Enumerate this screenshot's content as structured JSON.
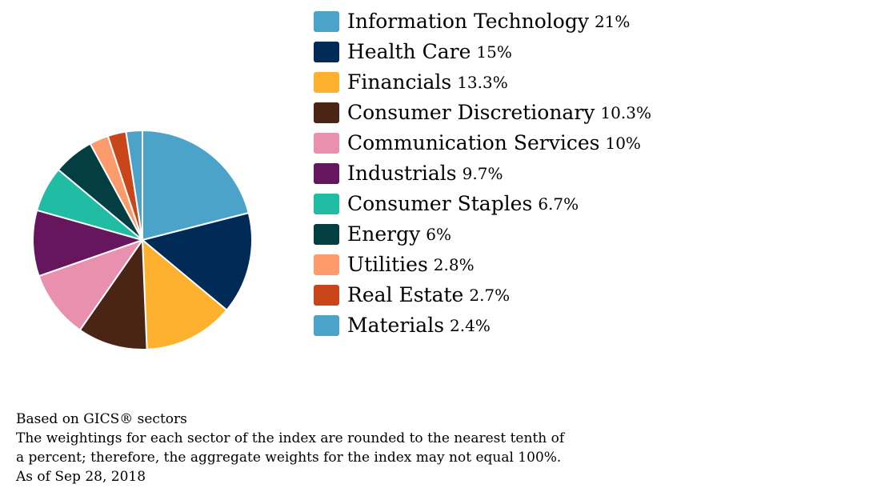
{
  "chart_data": {
    "type": "pie",
    "start_angle": "12 o'clock",
    "direction": "clockwise",
    "slices": [
      {
        "label": "Information Technology",
        "value": 21,
        "value_label": "21%",
        "color": "#4BA3C9"
      },
      {
        "label": "Health Care",
        "value": 15,
        "value_label": "15%",
        "color": "#002B57"
      },
      {
        "label": "Financials",
        "value": 13.3,
        "value_label": "13.3%",
        "color": "#FDB12E"
      },
      {
        "label": "Consumer Discretionary",
        "value": 10.3,
        "value_label": "10.3%",
        "color": "#4A2414"
      },
      {
        "label": "Communication Services",
        "value": 10,
        "value_label": "10%",
        "color": "#E990AE"
      },
      {
        "label": "Industrials",
        "value": 9.7,
        "value_label": "9.7%",
        "color": "#65165C"
      },
      {
        "label": "Consumer Staples",
        "value": 6.7,
        "value_label": "6.7%",
        "color": "#20BCA3"
      },
      {
        "label": "Energy",
        "value": 6,
        "value_label": "6%",
        "color": "#033E42"
      },
      {
        "label": "Utilities",
        "value": 2.8,
        "value_label": "2.8%",
        "color": "#FE9B6D"
      },
      {
        "label": "Real Estate",
        "value": 2.7,
        "value_label": "2.7%",
        "color": "#C9461A"
      },
      {
        "label": "Materials",
        "value": 2.4,
        "value_label": "2.4%",
        "color": "#4BA3C9"
      }
    ],
    "legend_position": "right"
  },
  "footnote": {
    "line1": "Based on GICS® sectors",
    "line2": "The weightings for each sector of the index are rounded to the nearest tenth of",
    "line3": "a percent; therefore, the aggregate weights for the index may not equal 100%.",
    "line4": "As of Sep 28, 2018"
  }
}
